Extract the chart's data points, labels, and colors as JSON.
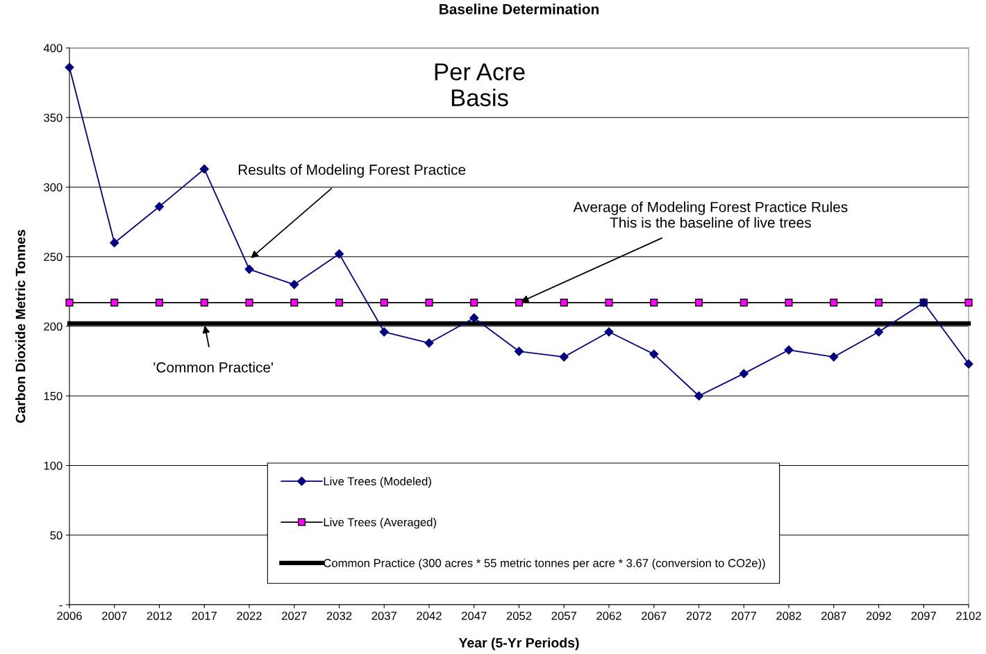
{
  "chart_data": {
    "type": "line",
    "title": "Baseline Determination",
    "xlabel": "Year (5-Yr Periods)",
    "ylabel": "Carbon Dioxide Metric Tonnes",
    "categories": [
      "2006",
      "2007",
      "2012",
      "2017",
      "2022",
      "2027",
      "2032",
      "2037",
      "2042",
      "2047",
      "2052",
      "2057",
      "2062",
      "2067",
      "2072",
      "2077",
      "2082",
      "2087",
      "2092",
      "2097",
      "2102"
    ],
    "series": [
      {
        "name": "Live Trees (Modeled)",
        "color": "#000080",
        "marker": "diamond",
        "values": [
          386,
          260,
          286,
          313,
          241,
          230,
          252,
          196,
          188,
          206,
          182,
          178,
          196,
          180,
          150,
          166,
          183,
          178,
          196,
          217,
          173
        ]
      },
      {
        "name": "Live Trees (Averaged)",
        "color": "#ff00ff",
        "marker": "square",
        "values": [
          217,
          217,
          217,
          217,
          217,
          217,
          217,
          217,
          217,
          217,
          217,
          217,
          217,
          217,
          217,
          217,
          217,
          217,
          217,
          217,
          217
        ]
      },
      {
        "name": "Common Practice (300 acres * 55 metric tonnes per acre * 3.67 (conversion to CO2e))",
        "color": "#000000",
        "marker": "none",
        "values": [
          202,
          202,
          202,
          202,
          202,
          202,
          202,
          202,
          202,
          202,
          202,
          202,
          202,
          202,
          202,
          202,
          202,
          202,
          202,
          202,
          202
        ]
      }
    ],
    "ylim": [
      0,
      400
    ],
    "yticks": [
      {
        "value": 0,
        "label": "-"
      },
      50,
      100,
      150,
      200,
      250,
      300,
      350,
      400
    ],
    "grid": "y",
    "legend": "bottom",
    "annotations": [
      "Per Acre\nBasis",
      {
        "text": "Results of Modeling Forest Practice",
        "x": "2022",
        "y": 248
      },
      {
        "text": "Average of Modeling Forest Practice Rules\nThis is the baseline of live trees",
        "x": "2052",
        "y": 217
      },
      {
        "text": "'Common Practice'",
        "x": "2017",
        "y": 202
      }
    ]
  }
}
